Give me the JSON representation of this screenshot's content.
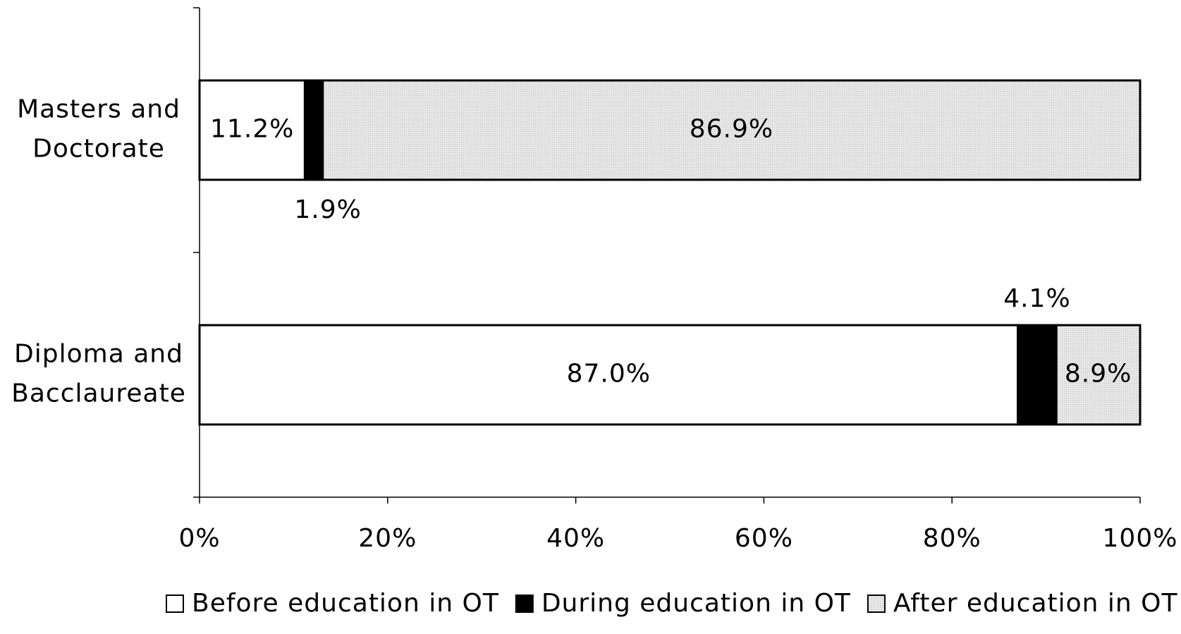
{
  "chart_data": {
    "type": "stacked-bar-horizontal",
    "categories": [
      "Masters and Doctorate",
      "Diploma and Bacclaureate"
    ],
    "series": [
      {
        "name": "Before education in OT",
        "color": "#ffffff",
        "values": [
          11.2,
          87.0
        ],
        "value_labels": [
          "11.2%",
          "87.0%"
        ]
      },
      {
        "name": "During education in OT",
        "color": "#000000",
        "values": [
          1.9,
          4.1
        ],
        "value_labels": [
          "1.9%",
          "4.1%"
        ]
      },
      {
        "name": "After education in OT",
        "color": "#dcdcdc",
        "values": [
          86.9,
          8.9
        ],
        "value_labels": [
          "86.9%",
          "8.9%"
        ]
      }
    ],
    "xlim": [
      0,
      100
    ],
    "xticks": [
      {
        "value": 0,
        "label": "0%"
      },
      {
        "value": 20,
        "label": "20%"
      },
      {
        "value": 40,
        "label": "40%"
      },
      {
        "value": 60,
        "label": "60%"
      },
      {
        "value": 80,
        "label": "80%"
      },
      {
        "value": 100,
        "label": "100%"
      }
    ],
    "legend": "bottom"
  }
}
